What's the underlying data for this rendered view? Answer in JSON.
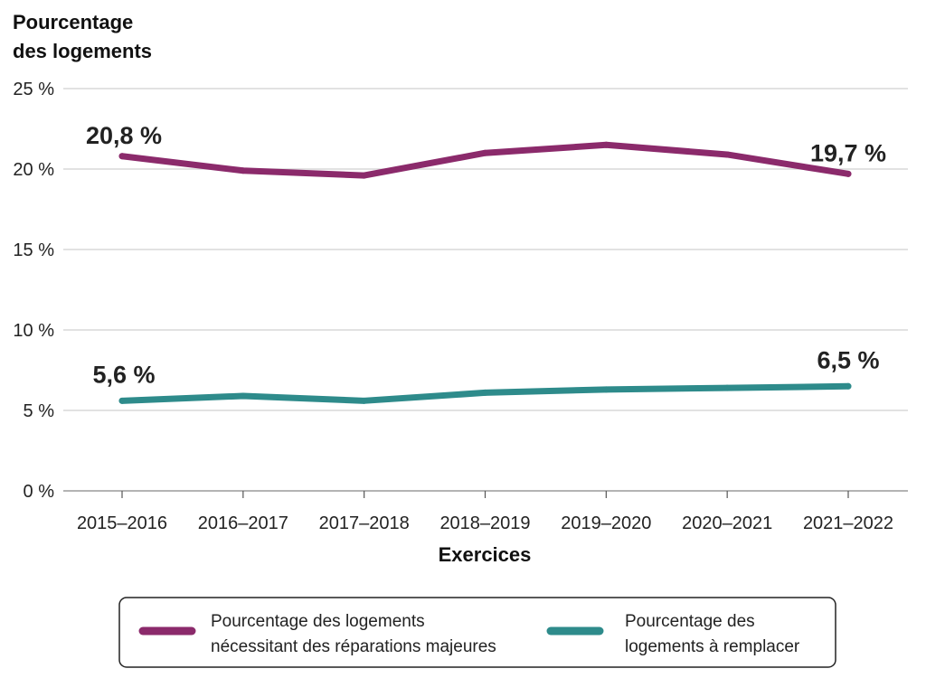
{
  "chart_data": {
    "type": "line",
    "ylabel_lines": [
      "Pourcentage",
      "des logements"
    ],
    "xlabel": "Exercices",
    "categories": [
      "2015–2016",
      "2016–2017",
      "2017–2018",
      "2018–2019",
      "2019–2020",
      "2020–2021",
      "2021–2022"
    ],
    "ylim": [
      0,
      25
    ],
    "yticks": [
      0,
      5,
      10,
      15,
      20,
      25
    ],
    "ytick_labels": [
      "0 %",
      "5 %",
      "10 %",
      "15 %",
      "20 %",
      "25 %"
    ],
    "grid": true,
    "legend_placement": "bottom",
    "series": [
      {
        "name_lines": [
          "Pourcentage des logements",
          "nécessitant des réparations majeures"
        ],
        "color": "#8b2a6b",
        "values": [
          20.8,
          19.9,
          19.6,
          21.0,
          21.5,
          20.9,
          19.7
        ],
        "labels": [
          {
            "index": 0,
            "text": "20,8 %"
          },
          {
            "index": 6,
            "text": "19,7 %"
          }
        ]
      },
      {
        "name_lines": [
          "Pourcentage des",
          "logements à remplacer"
        ],
        "color": "#2e8b8b",
        "values": [
          5.6,
          5.9,
          5.6,
          6.1,
          6.3,
          6.4,
          6.5
        ],
        "labels": [
          {
            "index": 0,
            "text": "5,6 %"
          },
          {
            "index": 6,
            "text": "6,5 %"
          }
        ]
      }
    ]
  }
}
